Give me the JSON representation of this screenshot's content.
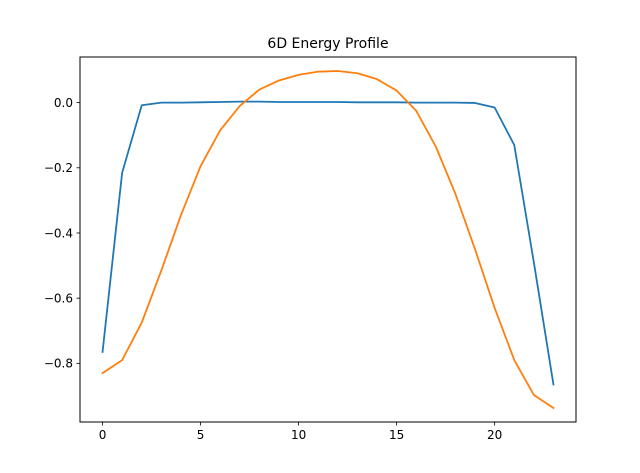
{
  "chart_data": {
    "type": "line",
    "title": "6D Energy Profile",
    "xlabel": "",
    "ylabel": "",
    "xlim": [
      -1.15,
      24.15
    ],
    "ylim": [
      -0.98,
      0.14
    ],
    "xticks": [
      0,
      5,
      10,
      15,
      20
    ],
    "yticks": [
      0.0,
      -0.2,
      -0.4,
      -0.6,
      -0.8
    ],
    "ytick_labels": [
      "0.0",
      "−0.2",
      "−0.4",
      "−0.6",
      "−0.8"
    ],
    "grid": false,
    "x": [
      0,
      1,
      2,
      3,
      4,
      5,
      6,
      7,
      8,
      9,
      10,
      11,
      12,
      13,
      14,
      15,
      16,
      17,
      18,
      19,
      20,
      21,
      22,
      23
    ],
    "series": [
      {
        "color": "#1f77b4",
        "values": [
          -0.765,
          -0.215,
          -0.008,
          0.0,
          0.0,
          0.001,
          0.002,
          0.003,
          0.003,
          0.002,
          0.002,
          0.002,
          0.002,
          0.001,
          0.001,
          0.001,
          0.0,
          0.0,
          0.0,
          -0.001,
          -0.015,
          -0.13,
          -0.49,
          -0.865
        ]
      },
      {
        "color": "#ff7f0e",
        "values": [
          -0.83,
          -0.79,
          -0.675,
          -0.515,
          -0.345,
          -0.195,
          -0.085,
          -0.01,
          0.04,
          0.068,
          0.085,
          0.095,
          0.097,
          0.09,
          0.072,
          0.037,
          -0.025,
          -0.135,
          -0.28,
          -0.45,
          -0.63,
          -0.79,
          -0.897,
          -0.937
        ]
      }
    ]
  }
}
